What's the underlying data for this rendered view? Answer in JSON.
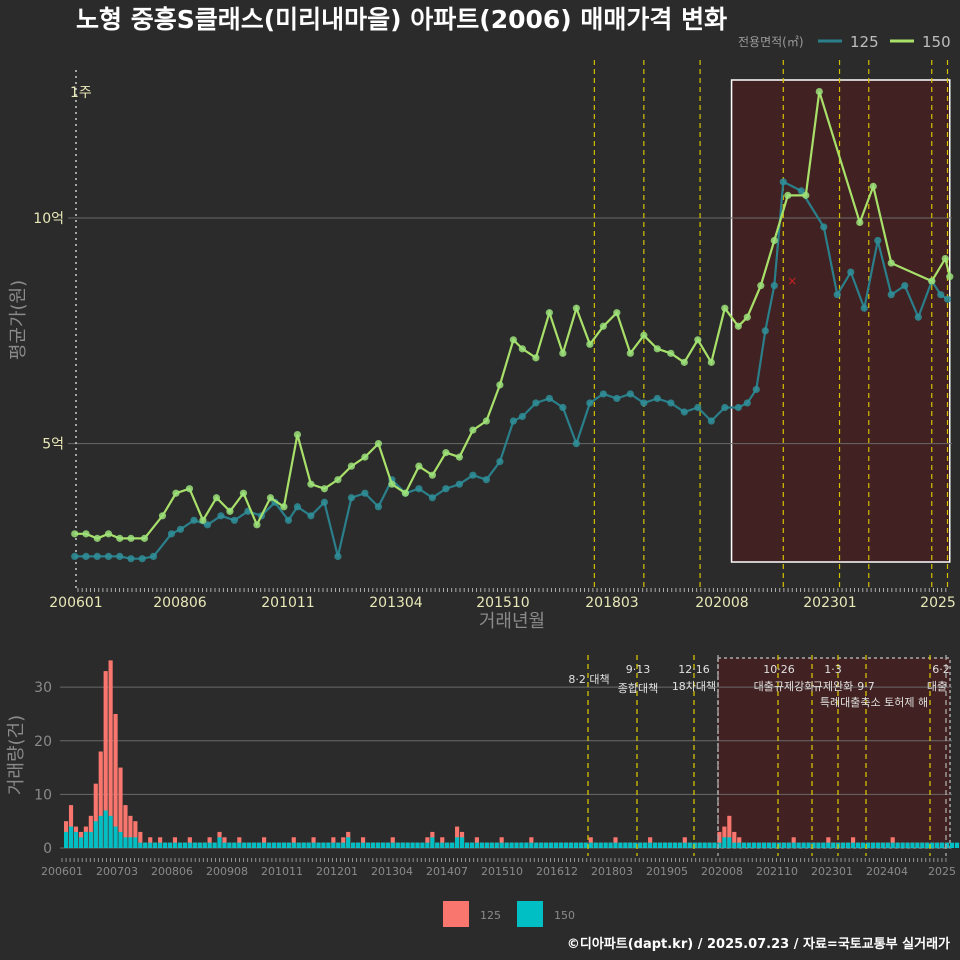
{
  "title": "노형 중흥S클래스(미리내마을) 아파트(2006) 매매가격 변화",
  "footer": "©디아파트(dapt.kr) / 2025.07.23 / 자료=국토교통부 실거래가",
  "colors": {
    "background": "#2b2b2b",
    "s125_line": "#2a7f8a",
    "s125_point": "#2f8f99",
    "s150_line": "#a8e06a",
    "s150_point": "#9be07a",
    "bar125": "#f8766d",
    "bar150": "#00bfc4",
    "policy_line": "#d4c000",
    "highlight_fill": "#4a1f1f",
    "grid": "#6a6a6a"
  },
  "top_legend": {
    "title": "전용면적(㎡)",
    "items": [
      "125",
      "150"
    ]
  },
  "bottom_legend": {
    "items": [
      "125",
      "150"
    ]
  },
  "left_marker_label": "1주",
  "chart_data": [
    {
      "type": "line",
      "xlabel": "거래년월",
      "ylabel": "평균가(원)",
      "x_tick_labels": [
        "200601",
        "200806",
        "201011",
        "201304",
        "201510",
        "201803",
        "202008",
        "202301",
        "2025"
      ],
      "y_ticks": [
        {
          "value": 5,
          "label": "5억"
        },
        {
          "value": 10,
          "label": "10억"
        }
      ],
      "ylim": [
        1.8,
        13.5
      ],
      "xlim": [
        2005.9,
        2025.55
      ],
      "highlight_range": [
        2020.65,
        2025.5
      ],
      "policy_lines": [
        2017.6,
        2018.7,
        2019.95,
        2021.8,
        2023.05,
        2023.7,
        2025.1,
        2025.45
      ],
      "series": [
        {
          "name": "125",
          "points": [
            [
              2006.05,
              2.5
            ],
            [
              2006.3,
              2.5
            ],
            [
              2006.55,
              2.5
            ],
            [
              2006.8,
              2.5
            ],
            [
              2007.05,
              2.5
            ],
            [
              2007.3,
              2.45
            ],
            [
              2007.55,
              2.45
            ],
            [
              2007.8,
              2.5
            ],
            [
              2008.2,
              3.0
            ],
            [
              2008.4,
              3.1
            ],
            [
              2008.7,
              3.3
            ],
            [
              2009.0,
              3.2
            ],
            [
              2009.3,
              3.4
            ],
            [
              2009.6,
              3.3
            ],
            [
              2009.9,
              3.5
            ],
            [
              2010.2,
              3.4
            ],
            [
              2010.5,
              3.7
            ],
            [
              2010.8,
              3.3
            ],
            [
              2011.0,
              3.6
            ],
            [
              2011.3,
              3.4
            ],
            [
              2011.6,
              3.7
            ],
            [
              2011.9,
              2.5
            ],
            [
              2012.2,
              3.8
            ],
            [
              2012.5,
              3.9
            ],
            [
              2012.8,
              3.6
            ],
            [
              2013.1,
              4.2
            ],
            [
              2013.4,
              3.9
            ],
            [
              2013.7,
              4.0
            ],
            [
              2014.0,
              3.8
            ],
            [
              2014.3,
              4.0
            ],
            [
              2014.6,
              4.1
            ],
            [
              2014.9,
              4.3
            ],
            [
              2015.2,
              4.2
            ],
            [
              2015.5,
              4.6
            ],
            [
              2015.8,
              5.5
            ],
            [
              2016.0,
              5.6
            ],
            [
              2016.3,
              5.9
            ],
            [
              2016.6,
              6.0
            ],
            [
              2016.9,
              5.8
            ],
            [
              2017.2,
              5.0
            ],
            [
              2017.5,
              5.9
            ],
            [
              2017.8,
              6.1
            ],
            [
              2018.1,
              6.0
            ],
            [
              2018.4,
              6.1
            ],
            [
              2018.7,
              5.9
            ],
            [
              2019.0,
              6.0
            ],
            [
              2019.3,
              5.9
            ],
            [
              2019.6,
              5.7
            ],
            [
              2019.9,
              5.8
            ],
            [
              2020.2,
              5.5
            ],
            [
              2020.5,
              5.8
            ],
            [
              2020.8,
              5.8
            ],
            [
              2021.0,
              5.9
            ],
            [
              2021.2,
              6.2
            ],
            [
              2021.4,
              7.5
            ],
            [
              2021.6,
              8.5
            ],
            [
              2021.8,
              10.8
            ],
            [
              2022.2,
              10.6
            ],
            [
              2022.7,
              9.8
            ],
            [
              2023.0,
              8.3
            ],
            [
              2023.3,
              8.8
            ],
            [
              2023.6,
              8.0
            ],
            [
              2023.9,
              9.5
            ],
            [
              2024.2,
              8.3
            ],
            [
              2024.5,
              8.5
            ],
            [
              2024.8,
              7.8
            ],
            [
              2025.1,
              8.6
            ],
            [
              2025.3,
              8.3
            ],
            [
              2025.45,
              8.2
            ]
          ]
        },
        {
          "name": "150",
          "points": [
            [
              2006.05,
              3.0
            ],
            [
              2006.3,
              3.0
            ],
            [
              2006.55,
              2.9
            ],
            [
              2006.8,
              3.0
            ],
            [
              2007.05,
              2.9
            ],
            [
              2007.3,
              2.9
            ],
            [
              2007.6,
              2.9
            ],
            [
              2008.0,
              3.4
            ],
            [
              2008.3,
              3.9
            ],
            [
              2008.6,
              4.0
            ],
            [
              2008.9,
              3.3
            ],
            [
              2009.2,
              3.8
            ],
            [
              2009.5,
              3.5
            ],
            [
              2009.8,
              3.9
            ],
            [
              2010.1,
              3.2
            ],
            [
              2010.4,
              3.8
            ],
            [
              2010.7,
              3.6
            ],
            [
              2011.0,
              5.2
            ],
            [
              2011.3,
              4.1
            ],
            [
              2011.6,
              4.0
            ],
            [
              2011.9,
              4.2
            ],
            [
              2012.2,
              4.5
            ],
            [
              2012.5,
              4.7
            ],
            [
              2012.8,
              5.0
            ],
            [
              2013.1,
              4.1
            ],
            [
              2013.4,
              3.9
            ],
            [
              2013.7,
              4.5
            ],
            [
              2014.0,
              4.3
            ],
            [
              2014.3,
              4.8
            ],
            [
              2014.6,
              4.7
            ],
            [
              2014.9,
              5.3
            ],
            [
              2015.2,
              5.5
            ],
            [
              2015.5,
              6.3
            ],
            [
              2015.8,
              7.3
            ],
            [
              2016.0,
              7.1
            ],
            [
              2016.3,
              6.9
            ],
            [
              2016.6,
              7.9
            ],
            [
              2016.9,
              7.0
            ],
            [
              2017.2,
              8.0
            ],
            [
              2017.5,
              7.2
            ],
            [
              2017.8,
              7.6
            ],
            [
              2018.1,
              7.9
            ],
            [
              2018.4,
              7.0
            ],
            [
              2018.7,
              7.4
            ],
            [
              2019.0,
              7.1
            ],
            [
              2019.3,
              7.0
            ],
            [
              2019.6,
              6.8
            ],
            [
              2019.9,
              7.3
            ],
            [
              2020.2,
              6.8
            ],
            [
              2020.5,
              8.0
            ],
            [
              2020.8,
              7.6
            ],
            [
              2021.0,
              7.8
            ],
            [
              2021.3,
              8.5
            ],
            [
              2021.6,
              9.5
            ],
            [
              2021.9,
              10.5
            ],
            [
              2022.3,
              10.5
            ],
            [
              2022.6,
              12.8
            ],
            [
              2023.5,
              9.9
            ],
            [
              2023.8,
              10.7
            ],
            [
              2024.2,
              9.0
            ],
            [
              2025.1,
              8.6
            ],
            [
              2025.4,
              9.1
            ],
            [
              2025.5,
              8.7
            ]
          ]
        }
      ]
    },
    {
      "type": "bar",
      "ylabel": "거래량(건)",
      "y_ticks": [
        0,
        10,
        20,
        30
      ],
      "ylim": [
        0,
        36
      ],
      "x_tick_labels": [
        "200601",
        "200703",
        "200806",
        "200908",
        "201011",
        "201201",
        "201304",
        "201407",
        "201510",
        "201612",
        "201803",
        "201905",
        "202008",
        "202110",
        "202301",
        "202404",
        "2025"
      ],
      "policy_labels": [
        {
          "date": "8·2 대책",
          "sub": ""
        },
        {
          "date": "9·13",
          "sub": "종합대책"
        },
        {
          "date": "12·16",
          "sub": "18차대책"
        },
        {
          "date": "10·26",
          "sub": "대출규제강화"
        },
        {
          "date": "1·3",
          "sub": "규제완화"
        },
        {
          "date": "9·7",
          "sub": "특례대출축소 토허제 해"
        },
        {
          "date": "6·2",
          "sub": "대출"
        }
      ],
      "series": [
        {
          "name": "125",
          "values": [
            5,
            8,
            4,
            3,
            4,
            6,
            12,
            18,
            33,
            35,
            25,
            15,
            8,
            6,
            5,
            3,
            1,
            2,
            1,
            2,
            1,
            1,
            2,
            1,
            1,
            2,
            1,
            1,
            1,
            2,
            1,
            3,
            2,
            1,
            1,
            2,
            1,
            1,
            1,
            1,
            2,
            1,
            1,
            1,
            1,
            1,
            2,
            1,
            1,
            1,
            2,
            1,
            1,
            1,
            2,
            1,
            2,
            3,
            1,
            1,
            2,
            1,
            1,
            1,
            1,
            1,
            2,
            1,
            1,
            1,
            1,
            1,
            1,
            2,
            3,
            1,
            2,
            1,
            1,
            4,
            3,
            1,
            1,
            2,
            1,
            1,
            1,
            1,
            2,
            1,
            1,
            1,
            1,
            1,
            2,
            1,
            1,
            1,
            1,
            1,
            1,
            1,
            1,
            1,
            1,
            1,
            2,
            1,
            1,
            1,
            1,
            2,
            1,
            1,
            1,
            1,
            1,
            1,
            2,
            1,
            1,
            1,
            1,
            1,
            1,
            2,
            1,
            1,
            1,
            1,
            1,
            1,
            3,
            4,
            6,
            3,
            2,
            1,
            1,
            1,
            1,
            1,
            1,
            1,
            1,
            1,
            1,
            2,
            1,
            1,
            1,
            1,
            1,
            1,
            2,
            1,
            1,
            1,
            1,
            2,
            1,
            1,
            1,
            1,
            1,
            1,
            1,
            2,
            1,
            1,
            1,
            1,
            1,
            1,
            1,
            1,
            1,
            1,
            1
          ]
        },
        {
          "name": "150",
          "values": [
            3,
            4,
            3,
            2,
            3,
            3,
            5,
            6,
            7,
            6,
            4,
            3,
            2,
            2,
            2,
            1,
            1,
            1,
            1,
            1,
            1,
            1,
            1,
            1,
            1,
            1,
            1,
            1,
            1,
            1,
            1,
            2,
            1,
            1,
            1,
            1,
            1,
            1,
            1,
            1,
            1,
            1,
            1,
            1,
            1,
            1,
            1,
            1,
            1,
            1,
            1,
            1,
            1,
            1,
            1,
            1,
            1,
            2,
            1,
            1,
            1,
            1,
            1,
            1,
            1,
            1,
            1,
            1,
            1,
            1,
            1,
            1,
            1,
            1,
            2,
            1,
            1,
            1,
            1,
            2,
            2,
            1,
            1,
            1,
            1,
            1,
            1,
            1,
            1,
            1,
            1,
            1,
            1,
            1,
            1,
            1,
            1,
            1,
            1,
            1,
            1,
            1,
            1,
            1,
            1,
            1,
            1,
            1,
            1,
            1,
            1,
            1,
            1,
            1,
            1,
            1,
            1,
            1,
            1,
            1,
            1,
            1,
            1,
            1,
            1,
            1,
            1,
            1,
            1,
            1,
            1,
            1,
            1,
            2,
            2,
            1,
            1,
            1,
            1,
            1,
            1,
            1,
            1,
            1,
            1,
            1,
            1,
            1,
            1,
            1,
            1,
            1,
            1,
            1,
            1,
            1,
            1,
            1,
            1,
            1,
            1,
            1,
            1,
            1,
            1,
            1,
            1,
            1,
            1,
            1,
            1,
            1,
            1,
            1,
            1,
            1,
            1,
            1,
            1,
            1,
            1
          ]
        }
      ]
    }
  ]
}
